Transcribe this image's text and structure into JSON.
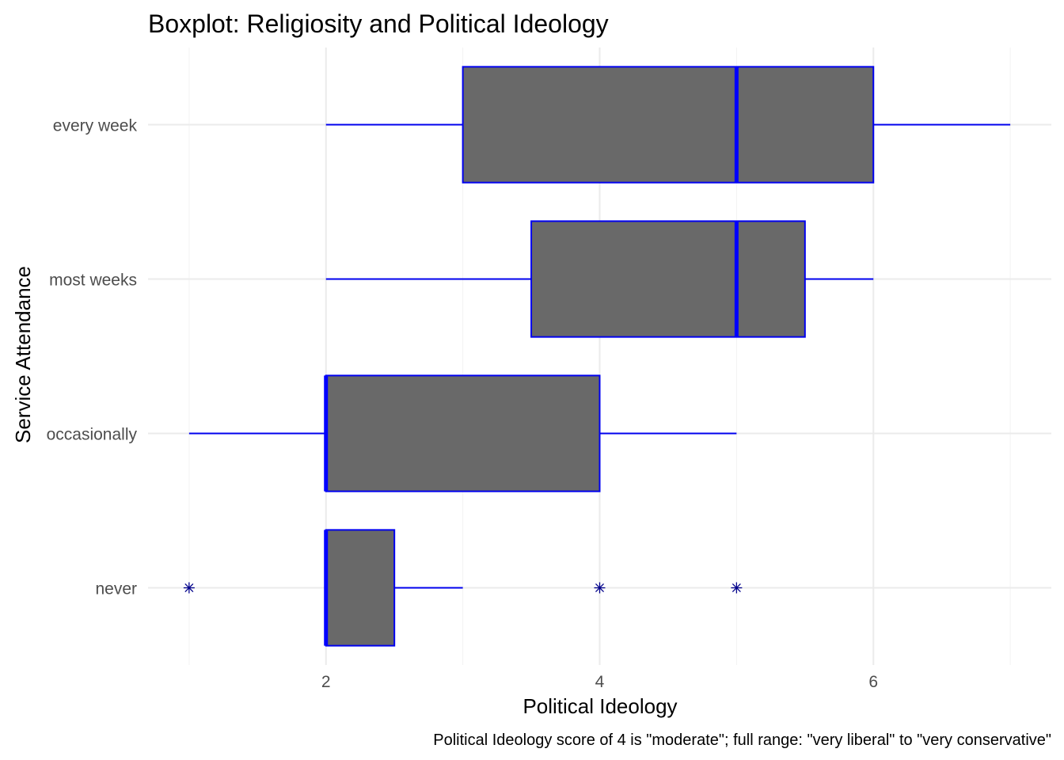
{
  "chart_data": {
    "type": "boxplot",
    "orientation": "horizontal",
    "title": "Boxplot: Religiosity and Political Ideology",
    "xlabel": "Political Ideology",
    "ylabel": "Service Attendance",
    "caption": "Political Ideology score of 4 is \"moderate\"; full range: \"very liberal\" to \"very conservative\"",
    "xlim": [
      0.7,
      7.3
    ],
    "x_ticks": [
      2,
      4,
      6
    ],
    "x_minor_gridlines": [
      1,
      3,
      5,
      7
    ],
    "grid": true,
    "legend": "none",
    "categories": [
      "never",
      "occasionally",
      "most weeks",
      "every week"
    ],
    "boxes": [
      {
        "category": "never",
        "whisker_low": 2,
        "q1": 2,
        "median": 2,
        "q3": 2.5,
        "whisker_high": 3,
        "outliers": [
          1,
          4,
          5
        ]
      },
      {
        "category": "occasionally",
        "whisker_low": 1,
        "q1": 2,
        "median": 2,
        "q3": 4,
        "whisker_high": 5,
        "outliers": []
      },
      {
        "category": "most weeks",
        "whisker_low": 2,
        "q1": 3.5,
        "median": 5,
        "q3": 5.5,
        "whisker_high": 6,
        "outliers": []
      },
      {
        "category": "every week",
        "whisker_low": 2,
        "q1": 3,
        "median": 5,
        "q3": 6,
        "whisker_high": 7,
        "outliers": []
      }
    ],
    "colors": {
      "box_fill": "#696969",
      "box_outline": "#0000ee",
      "median": "#0000ff",
      "whisker": "#0000ee",
      "outlier": "#00008b"
    }
  }
}
